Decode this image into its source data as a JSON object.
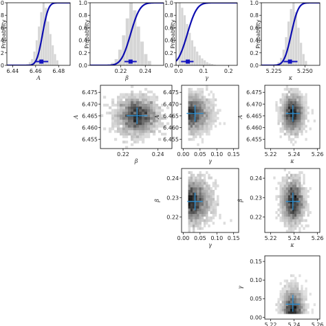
{
  "colors": {
    "cdf": "#0d0db0",
    "hist": "#d6d6d6",
    "point": "#1414c0",
    "cross": "#2f8fd0",
    "axes": "#000000"
  },
  "chart_data": [
    {
      "panel": "cdf-A",
      "type": "area",
      "ylabel": "Probability",
      "xlabel": "A",
      "xlim": [
        6.435,
        6.49
      ],
      "ylim": [
        0,
        1.0
      ],
      "xticks": [
        "6.44",
        "6.46",
        "6.48"
      ],
      "yticks": [
        "0.0",
        "0.2",
        "0.4",
        "0.6",
        "0.8",
        "1.0"
      ],
      "hist_bins": [
        6.452,
        6.454,
        6.456,
        6.458,
        6.46,
        6.462,
        6.464,
        6.466,
        6.468,
        6.47,
        6.472,
        6.474,
        6.476,
        6.478,
        6.48
      ],
      "hist_values": [
        0.02,
        0.05,
        0.1,
        0.22,
        0.4,
        0.62,
        0.85,
        1.0,
        0.92,
        0.7,
        0.5,
        0.32,
        0.18,
        0.08
      ],
      "cdf_mean": 6.466,
      "cdf_sd": 0.004,
      "estimate": 6.465,
      "interval": [
        6.46,
        6.471
      ]
    },
    {
      "panel": "cdf-beta",
      "type": "area",
      "ylabel": "Probability",
      "xlabel": "β",
      "xlim": [
        0.195,
        0.255
      ],
      "ylim": [
        0,
        1.0
      ],
      "xticks": [
        "0.22",
        "0.24"
      ],
      "yticks": [
        "0.0",
        "0.2",
        "0.4",
        "0.6",
        "0.8",
        "1.0"
      ],
      "hist_bins": [
        0.212,
        0.215,
        0.218,
        0.221,
        0.224,
        0.227,
        0.23,
        0.233,
        0.236,
        0.239,
        0.242,
        0.245
      ],
      "hist_values": [
        0.04,
        0.1,
        0.25,
        0.48,
        0.75,
        1.0,
        0.88,
        0.62,
        0.38,
        0.18,
        0.07
      ],
      "cdf_mean": 0.228,
      "cdf_sd": 0.006,
      "estimate": 0.228,
      "interval": [
        0.223,
        0.233
      ]
    },
    {
      "panel": "cdf-gamma",
      "type": "area",
      "ylabel": "Probability",
      "xlabel": "γ",
      "xlim": [
        -0.01,
        0.235
      ],
      "ylim": [
        0,
        1.0
      ],
      "xticks": [
        "0.0",
        "0.1",
        "0.2"
      ],
      "yticks": [
        "0.0",
        "0.2",
        "0.4",
        "0.6",
        "0.8",
        "1.0"
      ],
      "hist_bins": [
        0.0,
        0.01,
        0.02,
        0.03,
        0.04,
        0.05,
        0.06,
        0.07,
        0.08,
        0.09,
        0.1,
        0.11,
        0.12,
        0.13,
        0.14,
        0.15
      ],
      "hist_values": [
        1.0,
        0.92,
        0.8,
        0.66,
        0.52,
        0.4,
        0.3,
        0.22,
        0.16,
        0.11,
        0.08,
        0.05,
        0.03,
        0.02,
        0.01
      ],
      "cdf_mean": 0.035,
      "cdf_sd": 0.03,
      "estimate": 0.037,
      "interval": [
        0.01,
        0.06
      ]
    },
    {
      "panel": "cdf-kappa",
      "type": "area",
      "ylabel": "Probability",
      "xlabel": "κ",
      "xlim": [
        5.215,
        5.262
      ],
      "ylim": [
        0,
        1.0
      ],
      "xticks": [
        "5.225",
        "5.250"
      ],
      "yticks": [
        "0.0",
        "0.2",
        "0.4",
        "0.6",
        "0.8",
        "1.0"
      ],
      "hist_bins": [
        5.228,
        5.23,
        5.232,
        5.234,
        5.236,
        5.238,
        5.24,
        5.242,
        5.244,
        5.246,
        5.248,
        5.25,
        5.252
      ],
      "hist_values": [
        0.05,
        0.12,
        0.25,
        0.45,
        0.7,
        0.9,
        1.0,
        0.85,
        0.6,
        0.36,
        0.18,
        0.07
      ],
      "cdf_mean": 5.239,
      "cdf_sd": 0.0045,
      "estimate": 5.238,
      "interval": [
        5.233,
        5.244
      ]
    },
    {
      "panel": "joint-A-beta",
      "type": "heatmap",
      "xlabel": "β",
      "ylabel": "A",
      "xlim": [
        0.207,
        0.248
      ],
      "ylim": [
        6.451,
        6.478
      ],
      "xticks": [
        "0.22",
        "0.24"
      ],
      "yticks": [
        "6.455",
        "6.460",
        "6.465",
        "6.470",
        "6.475"
      ],
      "cx": 0.228,
      "cy": 6.465,
      "sx": 0.0055,
      "sy": 0.0038,
      "cross_x": [
        0.222,
        0.234
      ],
      "cross_y": [
        6.4615,
        6.4685
      ]
    },
    {
      "panel": "joint-A-gamma",
      "type": "heatmap",
      "xlabel": "γ",
      "ylabel": "A",
      "xlim": [
        -0.005,
        0.165
      ],
      "ylim": [
        6.451,
        6.478
      ],
      "xticks": [
        "0.00",
        "0.05",
        "0.10",
        "0.15"
      ],
      "yticks": [
        "6.455",
        "6.460",
        "6.465",
        "6.470",
        "6.475"
      ],
      "cx": 0.035,
      "cy": 6.466,
      "sx": 0.03,
      "sy": 0.0038,
      "skew": true,
      "cross_x": [
        0.01,
        0.06
      ],
      "cross_y": [
        6.4625,
        6.4695
      ]
    },
    {
      "panel": "joint-A-kappa",
      "type": "heatmap",
      "xlabel": "κ",
      "ylabel": "A",
      "xlim": [
        5.215,
        5.262
      ],
      "ylim": [
        6.451,
        6.478
      ],
      "xticks": [
        "5.22",
        "5.24",
        "5.26"
      ],
      "yticks": [
        "6.455",
        "6.460",
        "6.465",
        "6.470",
        "6.475"
      ],
      "cx": 5.239,
      "cy": 6.466,
      "sx": 0.0045,
      "sy": 0.0038,
      "cross_x": [
        5.233,
        5.245
      ],
      "cross_y": [
        6.4625,
        6.4695
      ]
    },
    {
      "panel": "joint-beta-gamma",
      "type": "heatmap",
      "xlabel": "γ",
      "ylabel": "β",
      "xlim": [
        -0.005,
        0.165
      ],
      "ylim": [
        0.212,
        0.245
      ],
      "xticks": [
        "0.00",
        "0.05",
        "0.10",
        "0.15"
      ],
      "yticks": [
        "0.22",
        "0.23",
        "0.24"
      ],
      "cx": 0.035,
      "cy": 0.228,
      "sx": 0.03,
      "sy": 0.0055,
      "skew": true,
      "cross_x": [
        0.012,
        0.058
      ],
      "cross_y": [
        0.2235,
        0.2325
      ]
    },
    {
      "panel": "joint-beta-kappa",
      "type": "heatmap",
      "xlabel": "κ",
      "ylabel": "β",
      "xlim": [
        5.215,
        5.262
      ],
      "ylim": [
        0.212,
        0.245
      ],
      "xticks": [
        "5.22",
        "5.24",
        "5.26"
      ],
      "yticks": [
        "0.22",
        "0.23",
        "0.24"
      ],
      "cx": 5.239,
      "cy": 0.228,
      "sx": 0.0045,
      "sy": 0.0055,
      "cross_x": [
        5.233,
        5.245
      ],
      "cross_y": [
        0.2235,
        0.2325
      ]
    },
    {
      "panel": "joint-gamma-kappa",
      "type": "heatmap",
      "xlabel": "κ",
      "ylabel": "γ",
      "xlim": [
        5.215,
        5.262
      ],
      "ylim": [
        -0.005,
        0.165
      ],
      "xticks": [
        "5.22",
        "5.24",
        "5.26"
      ],
      "yticks": [
        "0.00",
        "0.05",
        "0.10",
        "0.15"
      ],
      "cx": 5.239,
      "cy": 0.035,
      "sx": 0.0045,
      "sy": 0.03,
      "skewY": true,
      "cross_x": [
        5.233,
        5.245
      ],
      "cross_y": [
        0.015,
        0.06
      ]
    }
  ]
}
